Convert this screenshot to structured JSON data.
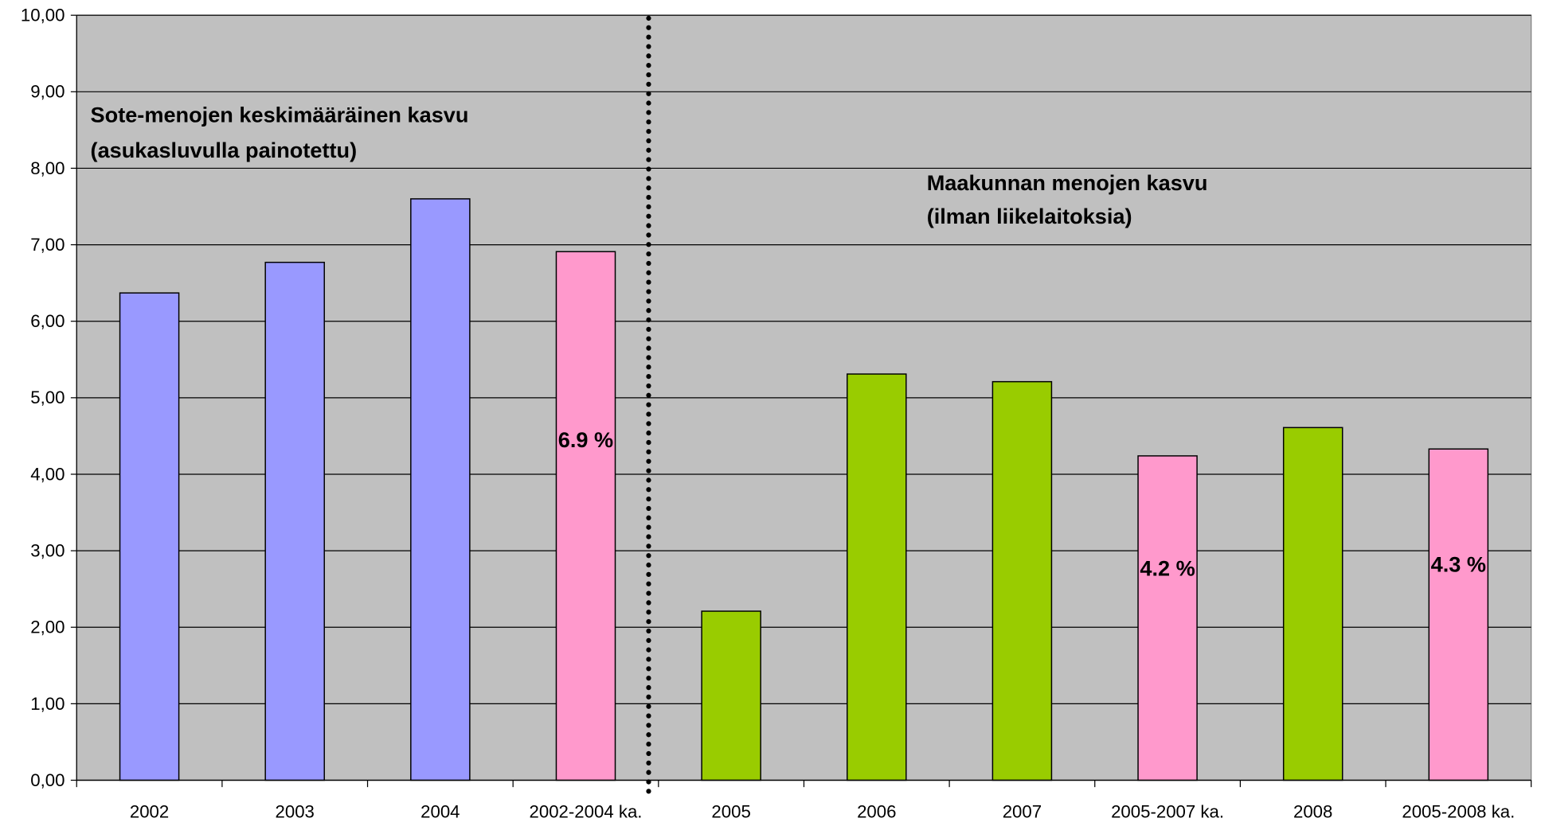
{
  "chart_data": {
    "type": "bar",
    "categories": [
      "2002",
      "2003",
      "2004",
      "2002-2004 ka.",
      "2005",
      "2006",
      "2007",
      "2005-2007 ka.",
      "2008",
      "2005-2008 ka."
    ],
    "values": [
      6.37,
      6.77,
      7.6,
      6.91,
      2.21,
      5.31,
      5.21,
      4.24,
      4.61,
      4.33
    ],
    "value_labels": [
      null,
      null,
      null,
      "6.9 %",
      null,
      null,
      null,
      "4.2 %",
      null,
      "4.3 %"
    ],
    "colors": [
      "#9999ff",
      "#9999ff",
      "#9999ff",
      "#ff99cc",
      "#99cc00",
      "#99cc00",
      "#99cc00",
      "#ff99cc",
      "#99cc00",
      "#ff99cc"
    ],
    "ylim": [
      0,
      10
    ],
    "yticks": [
      {
        "value": 0,
        "label": "0,00"
      },
      {
        "value": 1,
        "label": "1,00"
      },
      {
        "value": 2,
        "label": "2,00"
      },
      {
        "value": 3,
        "label": "3,00"
      },
      {
        "value": 4,
        "label": "4,00"
      },
      {
        "value": 5,
        "label": "5,00"
      },
      {
        "value": 6,
        "label": "6,00"
      },
      {
        "value": 7,
        "label": "7,00"
      },
      {
        "value": 8,
        "label": "8,00"
      },
      {
        "value": 9,
        "label": "9,00"
      },
      {
        "value": 10,
        "label": "10,00"
      }
    ],
    "grid": true,
    "annotations": [
      [
        "Sote-menojen keskimääräinen kasvu",
        "(asukasluvulla painotettu)"
      ],
      [
        "Maakunnan menojen kasvu",
        "(ilman liikelaitoksia)"
      ]
    ]
  }
}
